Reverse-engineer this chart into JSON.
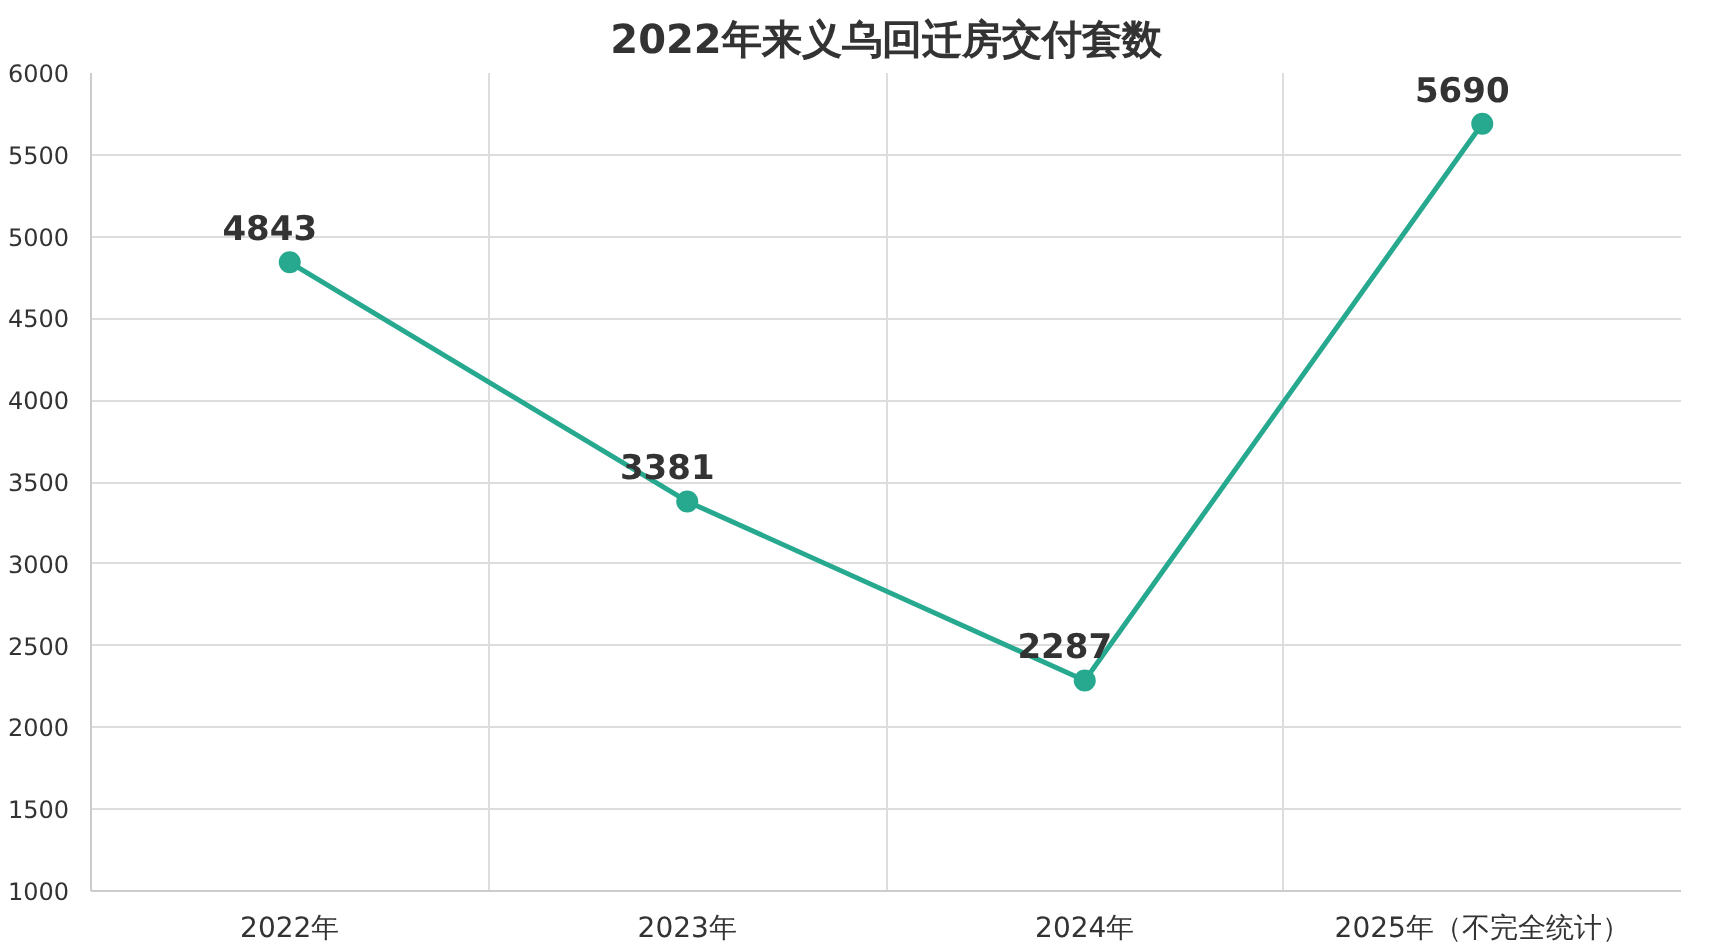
{
  "chart_data": {
    "type": "line",
    "title": "2022年来义乌回迁房交付套数",
    "categories": [
      "2022年",
      "2023年",
      "2024年",
      "2025年（不完全统计）"
    ],
    "series": [
      {
        "color": "#26a98e",
        "values": [
          4843,
          3381,
          2287,
          5690
        ]
      }
    ],
    "ylim": [
      1000,
      6000
    ],
    "yticks": [
      1000,
      1500,
      2000,
      2500,
      3000,
      3500,
      4000,
      4500,
      5000,
      5500,
      6000
    ],
    "grid": true,
    "marker": "circle",
    "line_style": "solid",
    "data_labels": true
  }
}
